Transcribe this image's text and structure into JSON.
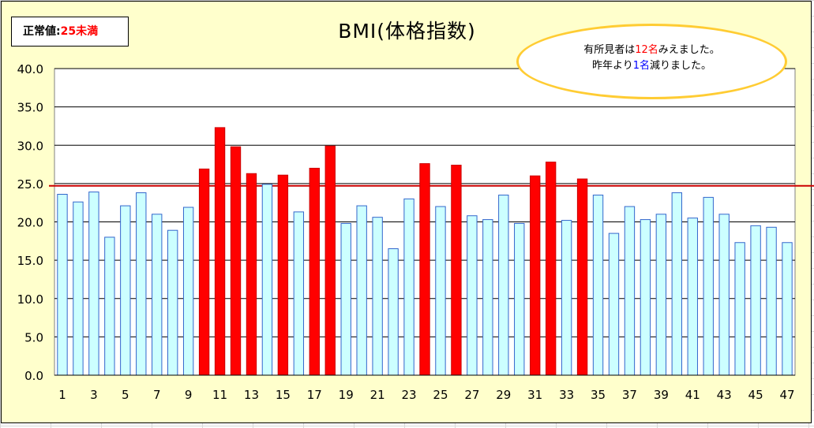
{
  "chart_data": {
    "type": "bar",
    "title": "BMI(体格指数)",
    "categories": [
      "1",
      "2",
      "3",
      "4",
      "5",
      "6",
      "7",
      "8",
      "9",
      "10",
      "11",
      "12",
      "13",
      "14",
      "15",
      "16",
      "17",
      "18",
      "19",
      "20",
      "21",
      "22",
      "23",
      "24",
      "25",
      "26",
      "27",
      "28",
      "29",
      "30",
      "31",
      "32",
      "33",
      "34",
      "35",
      "36",
      "37",
      "38",
      "39",
      "40",
      "41",
      "42",
      "43",
      "44",
      "45",
      "46",
      "47"
    ],
    "values": [
      23.6,
      22.6,
      23.9,
      18.0,
      22.1,
      23.8,
      21.0,
      18.9,
      21.9,
      26.9,
      32.3,
      29.8,
      26.3,
      24.9,
      26.1,
      21.3,
      27.0,
      29.9,
      19.8,
      22.1,
      20.6,
      16.5,
      23.0,
      27.6,
      22.0,
      27.4,
      20.8,
      20.3,
      23.5,
      19.8,
      26.0,
      27.8,
      20.2,
      25.6,
      23.5,
      18.5,
      22.0,
      20.3,
      21.0,
      23.8,
      20.5,
      23.2,
      21.0,
      17.3,
      19.5,
      19.3,
      17.3
    ],
    "xtick_labels": [
      "1",
      "3",
      "5",
      "7",
      "9",
      "11",
      "13",
      "15",
      "17",
      "19",
      "21",
      "23",
      "25",
      "27",
      "29",
      "31",
      "33",
      "35",
      "37",
      "39",
      "41",
      "43",
      "45",
      "47"
    ],
    "ytick_labels": [
      "40.0",
      "35.0",
      "30.0",
      "25.0",
      "20.0",
      "15.0",
      "10.0",
      "5.0",
      "0.0"
    ],
    "ylim": [
      0,
      40
    ],
    "threshold": 24.7,
    "highlight_above": 25,
    "grid": true,
    "legend": "none",
    "colors": {
      "normal_fill": "#ccffff",
      "normal_stroke": "#3366cc",
      "over_fill": "#ff0000",
      "over_stroke": "#cc0000",
      "threshold_line": "#cc0000",
      "plot_bg": "#ffffff",
      "chart_bg": "#ffffcc"
    }
  },
  "standard": {
    "label": "正常値:",
    "value": "25未満"
  },
  "note": {
    "line1_pre": "有所見者は",
    "line1_count": "12名",
    "line1_post": "みえました。",
    "line2_pre": "昨年より",
    "line2_count": "1名",
    "line2_post": "減りました。"
  }
}
